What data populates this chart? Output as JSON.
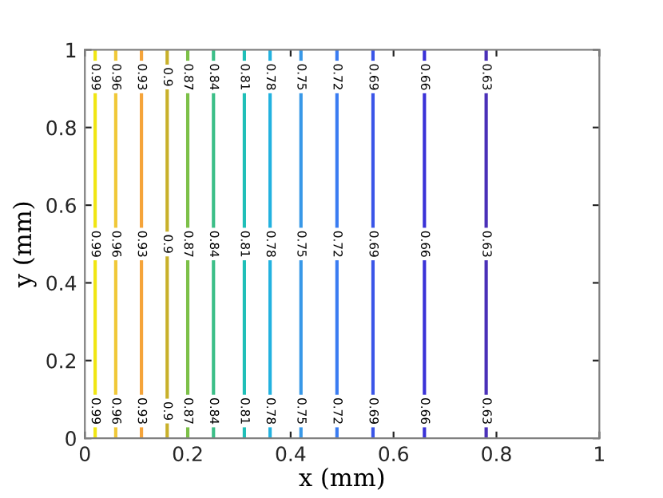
{
  "chart_data": {
    "type": "line",
    "xlabel": "x (mm)",
    "ylabel": "y (mm)",
    "xlim": [
      0,
      1
    ],
    "ylim": [
      0,
      1
    ],
    "xticks": [
      0,
      0.2,
      0.4,
      0.6,
      0.8,
      1
    ],
    "yticks": [
      0,
      0.2,
      0.4,
      0.6,
      0.8,
      1
    ],
    "grid": false,
    "legend": false,
    "series": [
      {
        "name": "0.99",
        "color": "#f0e612",
        "x": [
          0.02,
          0.02
        ],
        "values": [
          0,
          1
        ]
      },
      {
        "name": "0.96",
        "color": "#f0c838",
        "x": [
          0.06,
          0.06
        ],
        "values": [
          0,
          1
        ]
      },
      {
        "name": "0.93",
        "color": "#f5a43a",
        "x": [
          0.11,
          0.11
        ],
        "values": [
          0,
          1
        ]
      },
      {
        "name": "0.9",
        "color": "#c8b02a",
        "x": [
          0.16,
          0.16
        ],
        "values": [
          0,
          1
        ]
      },
      {
        "name": "0.87",
        "color": "#7cc048",
        "x": [
          0.2,
          0.2
        ],
        "values": [
          0,
          1
        ]
      },
      {
        "name": "0.84",
        "color": "#3cbf88",
        "x": [
          0.25,
          0.25
        ],
        "values": [
          0,
          1
        ]
      },
      {
        "name": "0.81",
        "color": "#1fbfb8",
        "x": [
          0.31,
          0.31
        ],
        "values": [
          0,
          1
        ]
      },
      {
        "name": "0.78",
        "color": "#22b2e0",
        "x": [
          0.36,
          0.36
        ],
        "values": [
          0,
          1
        ]
      },
      {
        "name": "0.75",
        "color": "#3898e8",
        "x": [
          0.42,
          0.42
        ],
        "values": [
          0,
          1
        ]
      },
      {
        "name": "0.72",
        "color": "#3a7cf2",
        "x": [
          0.49,
          0.49
        ],
        "values": [
          0,
          1
        ]
      },
      {
        "name": "0.69",
        "color": "#3a55e8",
        "x": [
          0.56,
          0.56
        ],
        "values": [
          0,
          1
        ]
      },
      {
        "name": "0.66",
        "color": "#3a32d8",
        "x": [
          0.66,
          0.66
        ],
        "values": [
          0,
          1
        ]
      },
      {
        "name": "0.63",
        "color": "#4a30b8",
        "x": [
          0.78,
          0.78
        ],
        "values": [
          0,
          1
        ]
      }
    ]
  }
}
